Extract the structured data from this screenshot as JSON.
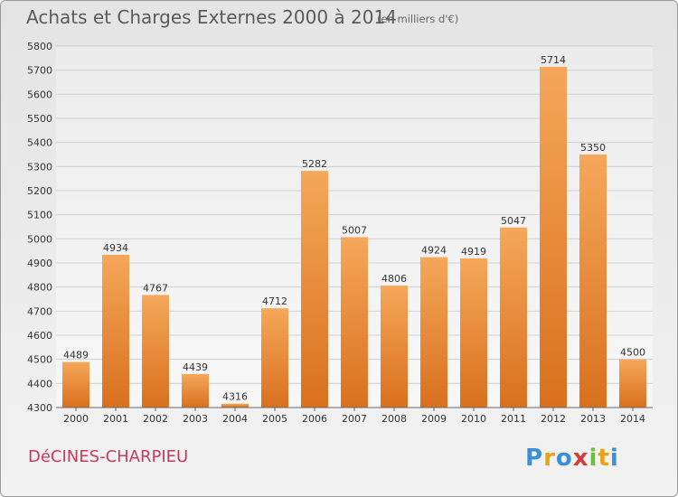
{
  "header": {
    "title": "Achats et Charges Externes 2000 à 2014",
    "subtitle": "(en milliers d'€)"
  },
  "footer": {
    "place": "DéCINES-CHARPIEU",
    "logo_text": "Proxiti"
  },
  "colors": {
    "bar_light": "#f5a75a",
    "bar_dark": "#d9701d",
    "place_text": "#c83a5a"
  },
  "chart_data": {
    "type": "bar",
    "title": "Achats et Charges Externes 2000 à 2014",
    "subtitle": "(en milliers d'€)",
    "categories": [
      "2000",
      "2001",
      "2002",
      "2003",
      "2004",
      "2005",
      "2006",
      "2007",
      "2008",
      "2009",
      "2010",
      "2011",
      "2012",
      "2013",
      "2014"
    ],
    "values": [
      4489,
      4934,
      4767,
      4439,
      4316,
      4712,
      5282,
      5007,
      4806,
      4924,
      4919,
      5047,
      5714,
      5350,
      4500
    ],
    "ylim": [
      4300,
      5800
    ],
    "yticks": [
      4300,
      4400,
      4500,
      4600,
      4700,
      4800,
      4900,
      5000,
      5100,
      5200,
      5300,
      5400,
      5500,
      5600,
      5700,
      5800
    ],
    "grid": true,
    "data_labels": true
  }
}
